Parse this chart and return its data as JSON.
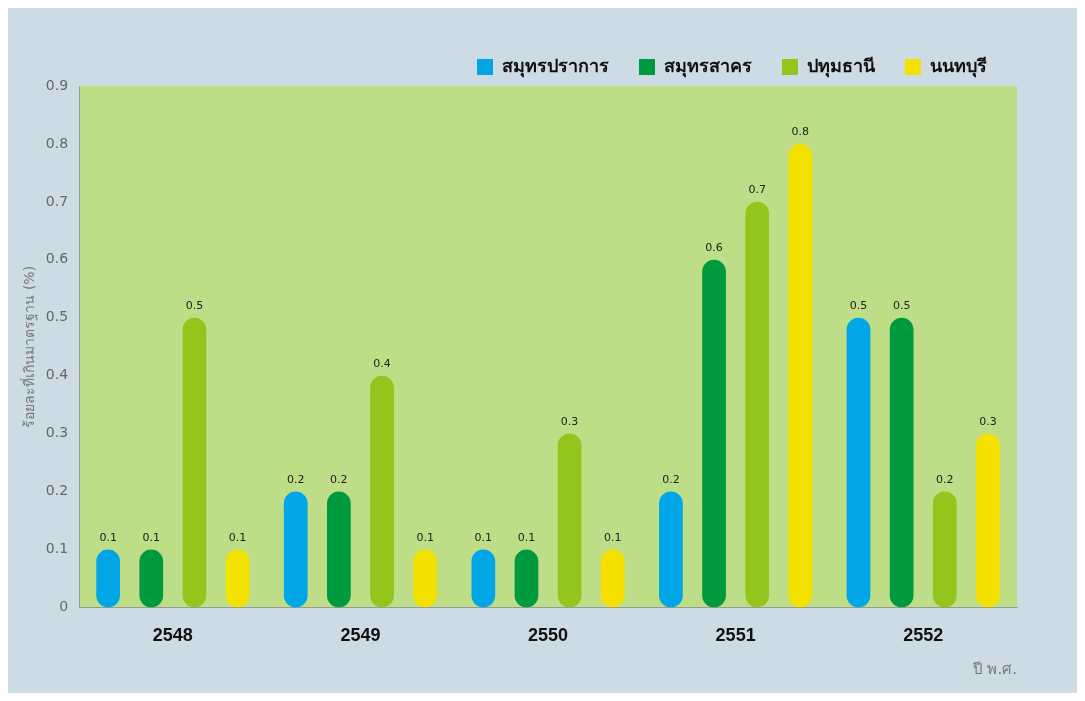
{
  "chart_data": {
    "type": "bar",
    "xlabel": "ปี พ.ศ.",
    "ylabel": "ร้อยละที่เกินมาตรฐาน (%)",
    "categories": [
      "2548",
      "2549",
      "2550",
      "2551",
      "2552"
    ],
    "series": [
      {
        "name": "สมุทรปราการ",
        "color": "#00a6e6",
        "values": [
          0.1,
          0.2,
          0.1,
          0.2,
          0.5
        ]
      },
      {
        "name": "สมุทรสาคร",
        "color": "#009a3e",
        "values": [
          0.1,
          0.2,
          0.1,
          0.6,
          0.5
        ]
      },
      {
        "name": "ปทุมธานี",
        "color": "#94c51c",
        "values": [
          0.5,
          0.4,
          0.3,
          0.7,
          0.2
        ]
      },
      {
        "name": "นนทบุรี",
        "color": "#f5e100",
        "values": [
          0.1,
          0.1,
          0.1,
          0.8,
          0.3
        ]
      }
    ],
    "ylim": [
      0,
      0.9
    ],
    "yticks": [
      0,
      0.1,
      0.2,
      0.3,
      0.4,
      0.5,
      0.6,
      0.7,
      0.8,
      0.9
    ],
    "grid": false,
    "legend": "top right",
    "data_labels": true
  }
}
